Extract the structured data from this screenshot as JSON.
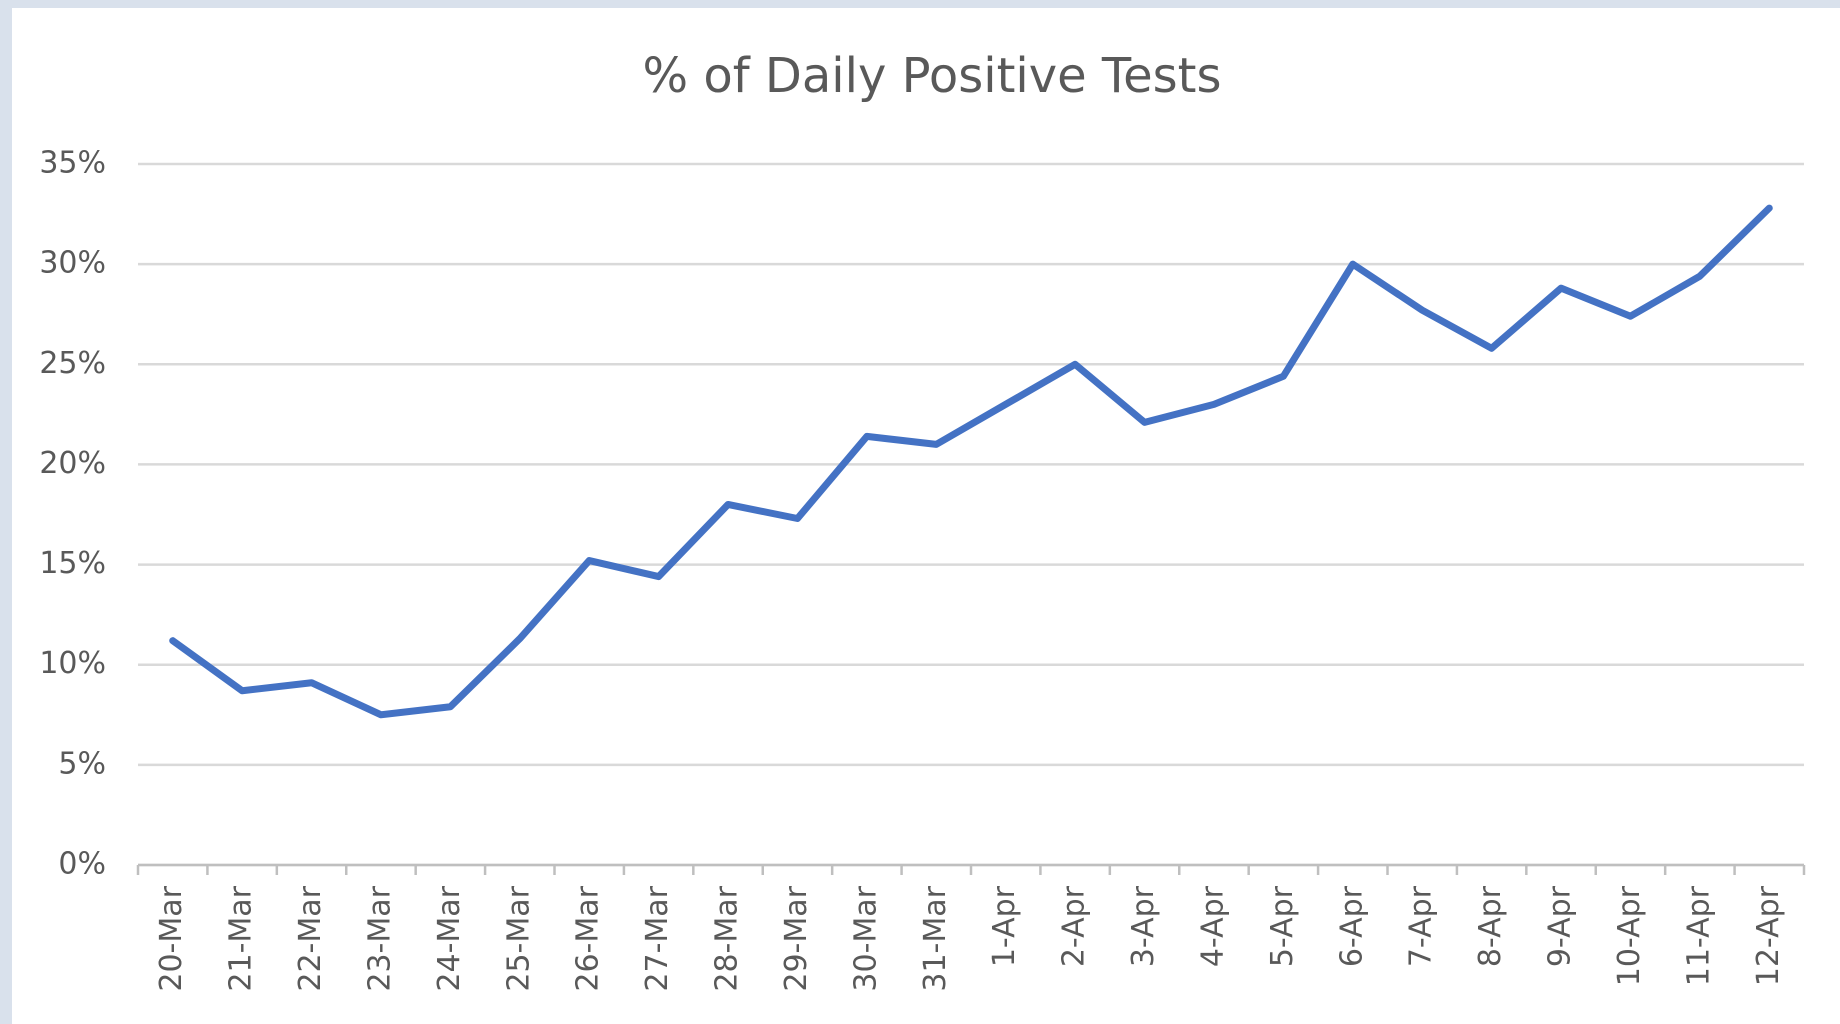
{
  "chart_data": {
    "type": "line",
    "title": "% of Daily Positive Tests",
    "categories": [
      "20-Mar",
      "21-Mar",
      "22-Mar",
      "23-Mar",
      "24-Mar",
      "25-Mar",
      "26-Mar",
      "27-Mar",
      "28-Mar",
      "29-Mar",
      "30-Mar",
      "31-Mar",
      "1-Apr",
      "2-Apr",
      "3-Apr",
      "4-Apr",
      "5-Apr",
      "6-Apr",
      "7-Apr",
      "8-Apr",
      "9-Apr",
      "10-Apr",
      "11-Apr",
      "12-Apr"
    ],
    "series": [
      {
        "name": "% of Daily Positive Tests",
        "color": "#4472c4",
        "values": [
          11.2,
          8.7,
          9.1,
          7.5,
          7.9,
          11.3,
          15.2,
          14.4,
          18.0,
          17.3,
          21.4,
          21.0,
          23.0,
          25.0,
          22.1,
          23.0,
          24.4,
          30.0,
          27.7,
          25.8,
          28.8,
          27.4,
          29.4,
          32.8
        ]
      }
    ],
    "ylim": [
      0,
      35
    ],
    "yticks": [
      {
        "value": 0,
        "label": "0%"
      },
      {
        "value": 5,
        "label": "5%"
      },
      {
        "value": 10,
        "label": "10%"
      },
      {
        "value": 15,
        "label": "15%"
      },
      {
        "value": 20,
        "label": "20%"
      },
      {
        "value": 25,
        "label": "25%"
      },
      {
        "value": 30,
        "label": "30%"
      },
      {
        "value": 35,
        "label": "35%"
      }
    ],
    "grid": true
  }
}
